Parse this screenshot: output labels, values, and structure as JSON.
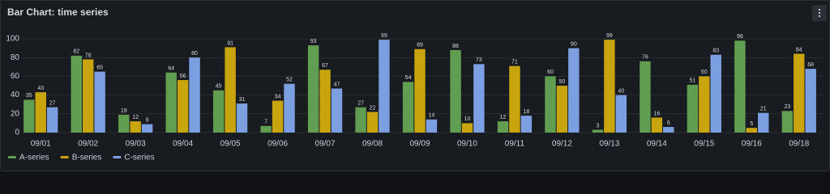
{
  "chart_data": {
    "type": "bar",
    "title": "Bar Chart: time series",
    "categories": [
      "09/01",
      "09/02",
      "09/03",
      "09/04",
      "09/05",
      "09/06",
      "09/07",
      "09/08",
      "09/09",
      "09/10",
      "09/11",
      "09/12",
      "09/13",
      "09/14",
      "09/15",
      "09/16",
      "09/18"
    ],
    "series": [
      {
        "name": "A-series",
        "color": "#629e51",
        "values": [
          35,
          82,
          19,
          64,
          45,
          7,
          93,
          27,
          54,
          88,
          12,
          60,
          3,
          76,
          51,
          98,
          23
        ]
      },
      {
        "name": "B-series",
        "color": "#c8a40f",
        "values": [
          43,
          78,
          12,
          56,
          91,
          34,
          67,
          22,
          89,
          10,
          71,
          50,
          99,
          16,
          60,
          5,
          84
        ]
      },
      {
        "name": "C-series",
        "color": "#7b9fe0",
        "values": [
          27,
          65,
          9,
          80,
          31,
          52,
          47,
          99,
          14,
          73,
          18,
          90,
          40,
          6,
          83,
          21,
          68
        ]
      }
    ],
    "ylim": [
      0,
      100
    ],
    "yticks": [
      0,
      20,
      40,
      60,
      80,
      100
    ],
    "grid": true,
    "legend": "bottom-left"
  }
}
